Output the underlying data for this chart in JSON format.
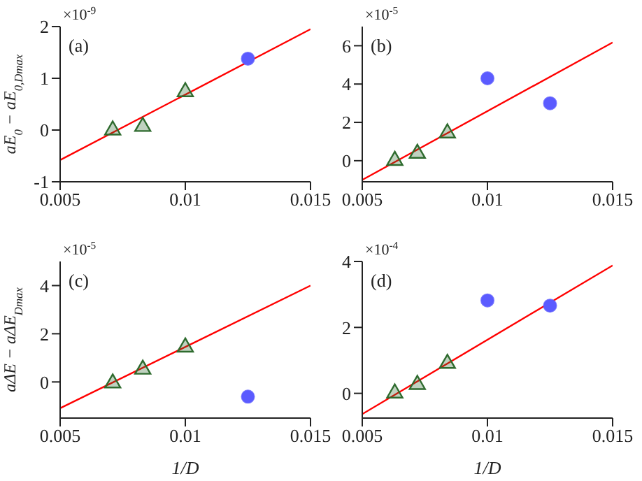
{
  "chart_data": [
    {
      "type": "scatter",
      "ylabel": "aE$_{0}$ − aE$_{0,Dmax}$",
      "annotations": [
        "(a)",
        "×10$^{-9}$"
      ],
      "xlim": [
        0.005,
        0.015
      ],
      "xticks": [
        0.005,
        0.01,
        0.015
      ],
      "ylim": [
        -1,
        2
      ],
      "yticks": [
        -1,
        0,
        1,
        2
      ],
      "series": [
        {
          "type": "scatter",
          "marker": "triangle",
          "color": "#2e6b2e",
          "x": [
            0.0071,
            0.0083,
            0.01
          ],
          "values": [
            0.02,
            0.09,
            0.76
          ]
        },
        {
          "type": "scatter",
          "marker": "circle",
          "color": "#5b5bff",
          "x": [
            0.0125
          ],
          "values": [
            1.38
          ]
        },
        {
          "type": "line",
          "line_style": "solid",
          "color": "#ff0000",
          "x": [
            0.005,
            0.015
          ],
          "values": [
            -0.58,
            1.95
          ]
        }
      ]
    },
    {
      "type": "scatter",
      "annotations": [
        "(b)",
        "×10$^{-5}$"
      ],
      "xlim": [
        0.005,
        0.015
      ],
      "xticks": [
        0.005,
        0.01,
        0.015
      ],
      "ylim": [
        -1.1,
        7
      ],
      "yticks": [
        0,
        2,
        4,
        6
      ],
      "series": [
        {
          "type": "scatter",
          "marker": "triangle",
          "color": "#2e6b2e",
          "x": [
            0.0063,
            0.0072,
            0.0084
          ],
          "values": [
            0.07,
            0.44,
            1.5
          ]
        },
        {
          "type": "scatter",
          "marker": "circle",
          "color": "#5b5bff",
          "x": [
            0.01,
            0.0125
          ],
          "values": [
            4.3,
            3.0
          ]
        },
        {
          "type": "line",
          "line_style": "solid",
          "color": "#ff0000",
          "x": [
            0.005,
            0.015
          ],
          "values": [
            -1.0,
            6.17
          ]
        }
      ]
    },
    {
      "type": "scatter",
      "xlabel": "1/D",
      "ylabel": "aΔE − aΔE$_{Dmax}$",
      "annotations": [
        "(c)",
        "×10$^{-5}$"
      ],
      "xlim": [
        0.005,
        0.015
      ],
      "xticks": [
        0.005,
        0.01,
        0.015
      ],
      "ylim": [
        -1.5,
        5
      ],
      "yticks": [
        0,
        2,
        4
      ],
      "series": [
        {
          "type": "scatter",
          "marker": "triangle",
          "color": "#2e6b2e",
          "x": [
            0.0071,
            0.0083,
            0.01
          ],
          "values": [
            0,
            0.57,
            1.49
          ]
        },
        {
          "type": "scatter",
          "marker": "circle",
          "color": "#5b5bff",
          "x": [
            0.0125
          ],
          "values": [
            -0.61
          ]
        },
        {
          "type": "line",
          "line_style": "solid",
          "color": "#ff0000",
          "x": [
            0.005,
            0.015
          ],
          "values": [
            -1.09,
            4.0
          ]
        }
      ]
    },
    {
      "type": "scatter",
      "xlabel": "1/D",
      "annotations": [
        "(d)",
        "×10$^{-4}$"
      ],
      "xlim": [
        0.005,
        0.015
      ],
      "xticks": [
        0.005,
        0.01,
        0.015
      ],
      "ylim": [
        -0.75,
        4
      ],
      "yticks": [
        0,
        2,
        4
      ],
      "series": [
        {
          "type": "scatter",
          "marker": "triangle",
          "color": "#2e6b2e",
          "x": [
            0.0063,
            0.0072,
            0.0084
          ],
          "values": [
            0.04,
            0.3,
            0.94
          ]
        },
        {
          "type": "scatter",
          "marker": "circle",
          "color": "#5b5bff",
          "x": [
            0.01,
            0.0125
          ],
          "values": [
            2.82,
            2.66
          ]
        },
        {
          "type": "line",
          "line_style": "solid",
          "color": "#ff0000",
          "x": [
            0.005,
            0.015
          ],
          "values": [
            -0.63,
            3.88
          ]
        }
      ]
    }
  ]
}
